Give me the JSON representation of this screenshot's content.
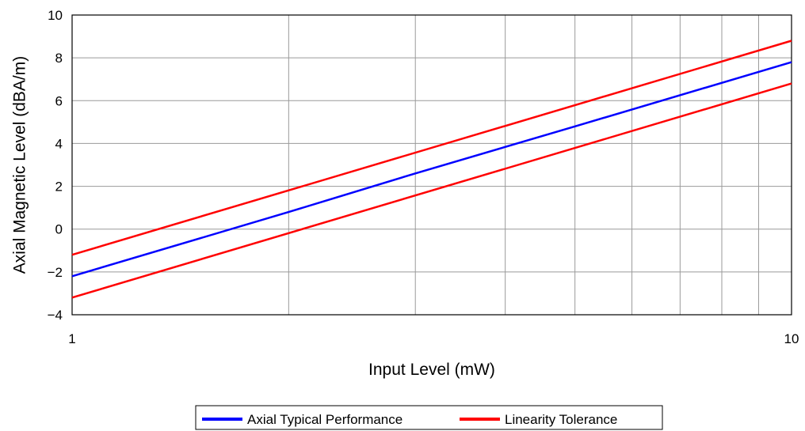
{
  "chart_data": {
    "type": "line",
    "title": "",
    "xlabel": "Input Level (mW)",
    "ylabel": "Axial Magnetic Level (dBA/m)",
    "x_scale": "log",
    "xlim": [
      1,
      10
    ],
    "ylim": [
      -4,
      10
    ],
    "x_tick_labels": [
      "1",
      "10"
    ],
    "y_ticks": [
      10,
      8,
      6,
      4,
      2,
      0,
      -2,
      -4
    ],
    "y_tick_labels": [
      "10",
      "8",
      "6",
      "4",
      "2",
      "0",
      "−2",
      "−4"
    ],
    "grid": true,
    "legend_position": "bottom",
    "series": [
      {
        "name": "Axial Typical Performance",
        "color": "#0000ff",
        "x": [
          1,
          2,
          3,
          5,
          10
        ],
        "y": [
          -2.2,
          0.8,
          2.6,
          4.8,
          7.8
        ]
      },
      {
        "name": "Linearity Tolerance",
        "color": "#ff0000",
        "x": [
          1,
          10
        ],
        "y": [
          -1.2,
          8.8
        ]
      },
      {
        "name": "",
        "color": "#ff0000",
        "x": [
          1,
          10
        ],
        "y": [
          -3.2,
          6.8
        ]
      }
    ],
    "legend": [
      {
        "label": "Axial Typical Performance",
        "color": "#0000ff"
      },
      {
        "label": "Linearity Tolerance",
        "color": "#ff0000"
      }
    ]
  }
}
